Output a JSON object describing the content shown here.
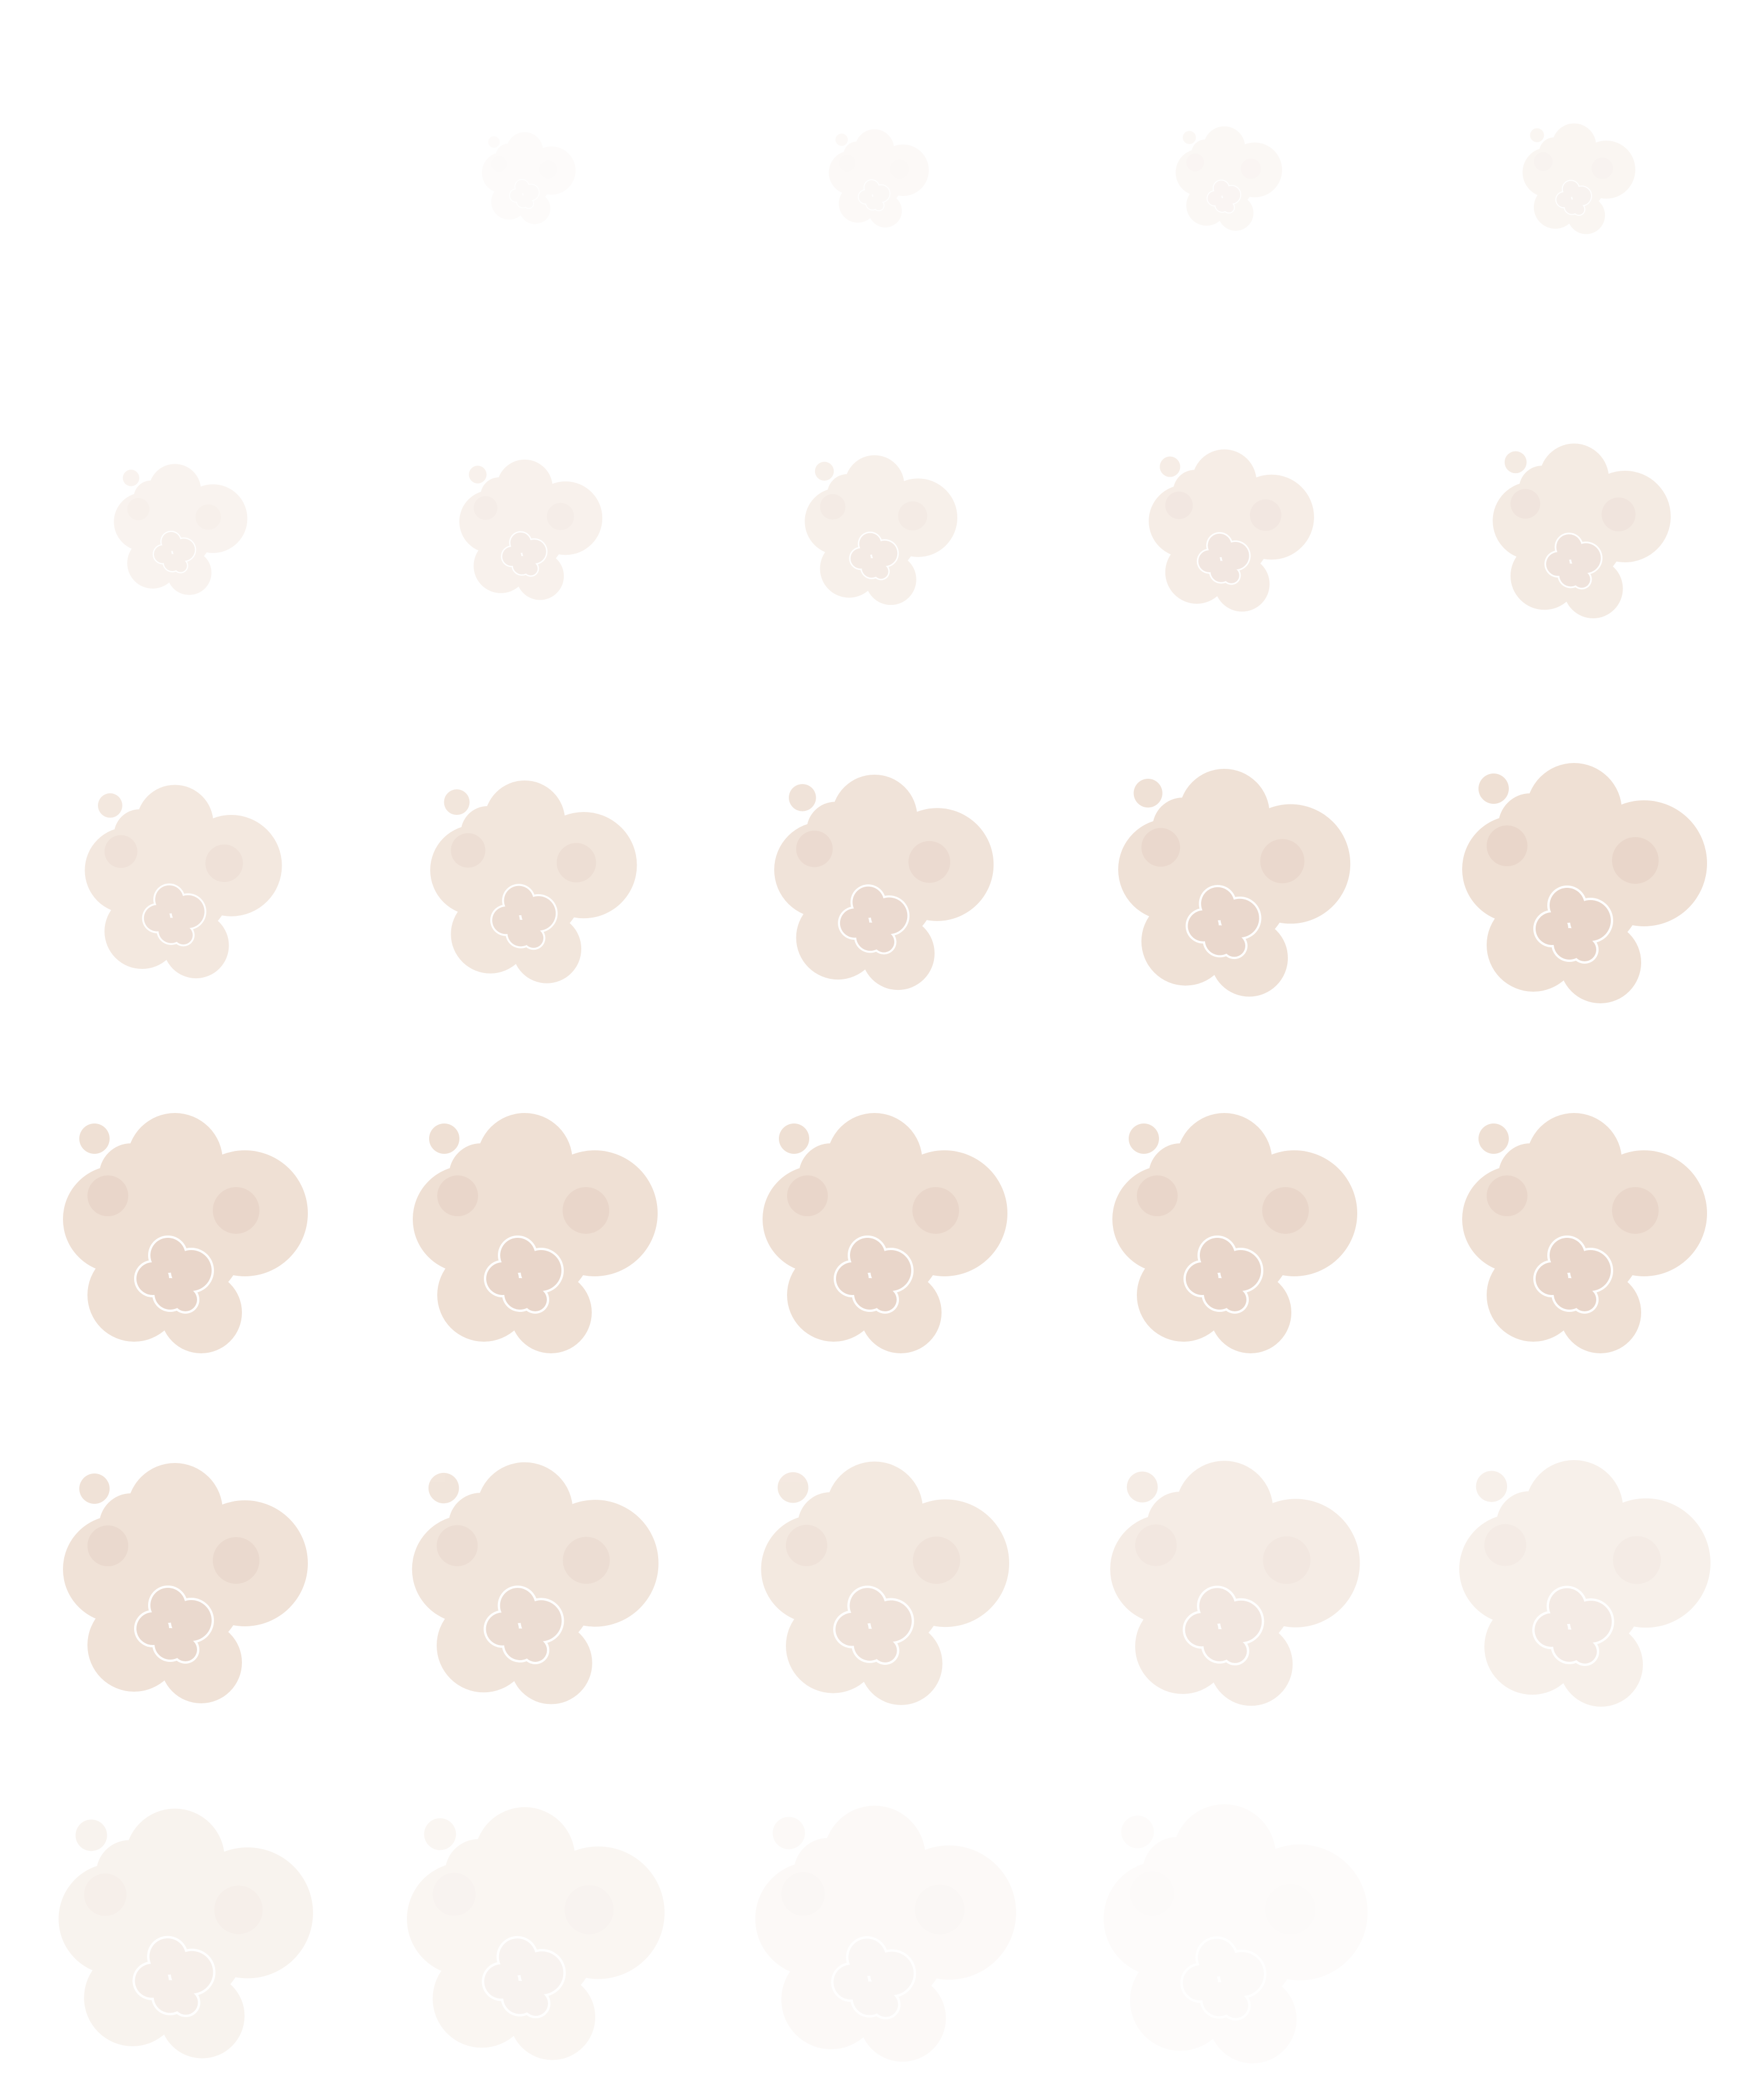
{
  "sprite_sheet": {
    "grid": {
      "columns": 5,
      "rows": 6
    },
    "frame_count": 29,
    "colors": {
      "background": "#ffffff",
      "puff_main": "#efe0d4",
      "puff_shade": "#e9d6ca",
      "puff_outline": "#ffffff"
    },
    "frames": [
      {
        "opacity": 0.0,
        "growth": 0.0
      },
      {
        "opacity": 0.1,
        "growth": 0.05
      },
      {
        "opacity": 0.16,
        "growth": 0.09
      },
      {
        "opacity": 0.22,
        "growth": 0.13
      },
      {
        "opacity": 0.28,
        "growth": 0.17
      },
      {
        "opacity": 0.36,
        "growth": 0.3
      },
      {
        "opacity": 0.42,
        "growth": 0.36
      },
      {
        "opacity": 0.48,
        "growth": 0.42
      },
      {
        "opacity": 0.56,
        "growth": 0.5
      },
      {
        "opacity": 0.64,
        "growth": 0.58
      },
      {
        "opacity": 0.72,
        "growth": 0.7
      },
      {
        "opacity": 0.8,
        "growth": 0.76
      },
      {
        "opacity": 0.88,
        "growth": 0.84
      },
      {
        "opacity": 0.94,
        "growth": 0.92
      },
      {
        "opacity": 1.0,
        "growth": 1.0
      },
      {
        "opacity": 1.0,
        "growth": 1.0
      },
      {
        "opacity": 1.0,
        "growth": 1.0
      },
      {
        "opacity": 1.0,
        "growth": 1.0
      },
      {
        "opacity": 1.0,
        "growth": 1.0
      },
      {
        "opacity": 1.0,
        "growth": 1.0
      },
      {
        "opacity": 0.92,
        "growth": 1.0
      },
      {
        "opacity": 0.82,
        "growth": 1.01
      },
      {
        "opacity": 0.7,
        "growth": 1.02
      },
      {
        "opacity": 0.58,
        "growth": 1.03
      },
      {
        "opacity": 0.48,
        "growth": 1.04
      },
      {
        "opacity": 0.38,
        "growth": 1.06
      },
      {
        "opacity": 0.28,
        "growth": 1.08
      },
      {
        "opacity": 0.18,
        "growth": 1.1
      },
      {
        "opacity": 0.1,
        "growth": 1.12
      }
    ]
  }
}
